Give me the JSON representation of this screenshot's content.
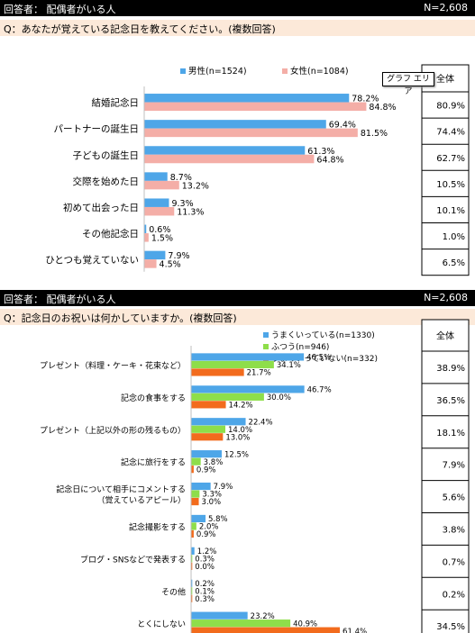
{
  "panels": [
    {
      "header_left": "回答者： 配偶者がいる人",
      "header_right": "N=2,608",
      "question": "Q：あなたが覚えている記念日を教えてください。(複数回答)",
      "total_label": "全体"
    },
    {
      "header_left": "回答者： 配偶者がいる人",
      "header_right": "N=2,608",
      "question": "Q：記念日のお祝いは何かしていますか。(複数回答)",
      "total_label": "全体"
    }
  ],
  "tooltip": "グラフ エリア",
  "colors": {
    "blue": "#4ea6e8",
    "pink": "#f4aea7",
    "green": "#8ede4a",
    "orange": "#f26b1d"
  },
  "chart_data": [
    {
      "type": "bar",
      "orientation": "horizontal",
      "categories": [
        "結婚記念日",
        "パートナーの誕生日",
        "子どもの誕生日",
        "交際を始めた日",
        "初めて出会った日",
        "その他記念日",
        "ひとつも覚えていない"
      ],
      "series": [
        {
          "name": "男性(n=1524)",
          "color": "#4ea6e8",
          "values": [
            78.2,
            69.4,
            61.3,
            8.7,
            9.3,
            0.6,
            7.9
          ]
        },
        {
          "name": "女性(n=1084)",
          "color": "#f4aea7",
          "values": [
            84.8,
            81.5,
            64.8,
            13.2,
            11.3,
            1.5,
            4.5
          ]
        }
      ],
      "totals": [
        80.9,
        74.4,
        62.7,
        10.5,
        10.1,
        1.0,
        6.5
      ],
      "value_suffix": "%",
      "legend_position": "top",
      "grid": false
    },
    {
      "type": "bar",
      "orientation": "horizontal",
      "categories": [
        "プレゼント（料理・ケーキ・花束など）",
        "記念の食事をする",
        "プレゼント（上記以外の形の残るもの）",
        "記念に旅行をする",
        [
          "記念日について相手にコメントする",
          "（覚えているアピール）"
        ],
        "記念撮影をする",
        "ブログ・SNSなどで発表する",
        "その他",
        "とくにしない"
      ],
      "series": [
        {
          "name": "うまくいっている(n=1330)",
          "color": "#4ea6e8",
          "values": [
            46.5,
            46.7,
            22.4,
            12.5,
            7.9,
            5.8,
            1.2,
            0.2,
            23.2
          ]
        },
        {
          "name": "ふつう(n=946)",
          "color": "#8ede4a",
          "values": [
            34.1,
            30.0,
            14.0,
            3.8,
            3.3,
            2.0,
            0.3,
            0.1,
            40.9
          ]
        },
        {
          "name": "うまくいっていない(n=332)",
          "color": "#f26b1d",
          "values": [
            21.7,
            14.2,
            13.0,
            0.9,
            3.0,
            0.9,
            0.0,
            0.3,
            61.4
          ]
        }
      ],
      "totals": [
        38.9,
        36.5,
        18.1,
        7.9,
        5.6,
        3.8,
        0.7,
        0.2,
        34.5
      ],
      "value_suffix": "%",
      "legend_position": "top",
      "grid": false
    }
  ]
}
